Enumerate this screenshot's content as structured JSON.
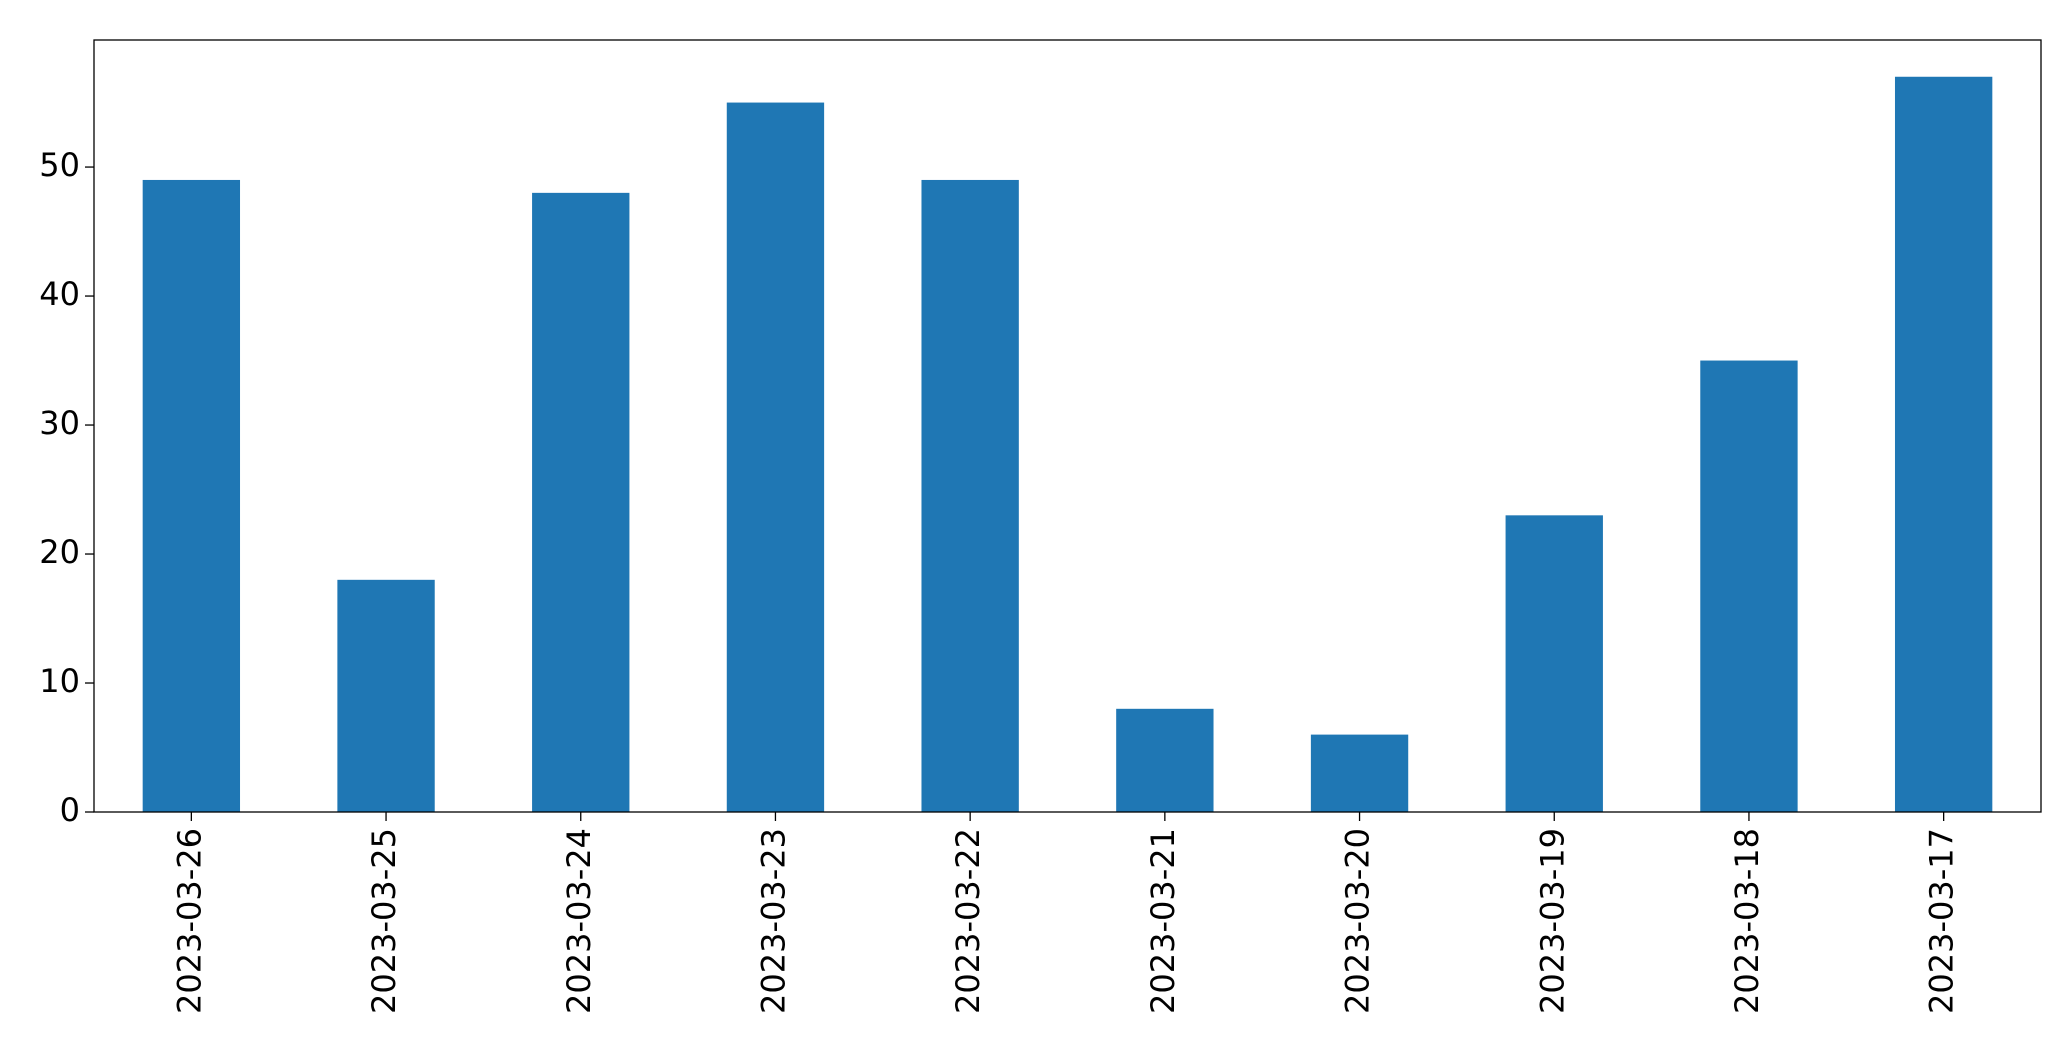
{
  "chart_data": {
    "type": "bar",
    "categories": [
      "2023-03-26",
      "2023-03-25",
      "2023-03-24",
      "2023-03-23",
      "2023-03-22",
      "2023-03-21",
      "2023-03-20",
      "2023-03-19",
      "2023-03-18",
      "2023-03-17"
    ],
    "values": [
      49,
      18,
      48,
      55,
      49,
      8,
      6,
      23,
      35,
      57
    ],
    "color": "#1f77b4",
    "ylim": [
      0,
      59.85
    ],
    "yticks": [
      0,
      10,
      20,
      30,
      40,
      50
    ],
    "grid": false
  }
}
